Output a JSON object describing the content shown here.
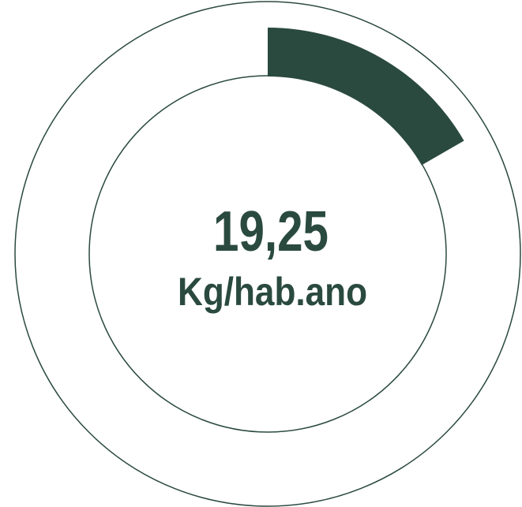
{
  "chart_data": {
    "type": "gauge",
    "values": [
      19.25
    ],
    "value_labels": [
      "19,25"
    ],
    "unit": "Kg/hab.ano",
    "ylim": [
      0,
      115.5
    ],
    "color": "#2a4a3f"
  }
}
